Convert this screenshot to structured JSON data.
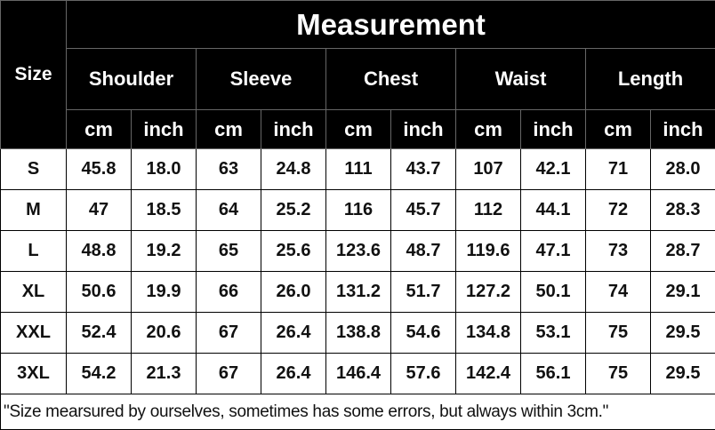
{
  "table": {
    "title": "Measurement",
    "size_header": "Size",
    "categories": [
      "Shoulder",
      "Sleeve",
      "Chest",
      "Waist",
      "Length"
    ],
    "units": [
      "cm",
      "inch"
    ],
    "rows": [
      {
        "size": "S",
        "values": [
          "45.8",
          "18.0",
          "63",
          "24.8",
          "111",
          "43.7",
          "107",
          "42.1",
          "71",
          "28.0"
        ]
      },
      {
        "size": "M",
        "values": [
          "47",
          "18.5",
          "64",
          "25.2",
          "116",
          "45.7",
          "112",
          "44.1",
          "72",
          "28.3"
        ]
      },
      {
        "size": "L",
        "values": [
          "48.8",
          "19.2",
          "65",
          "25.6",
          "123.6",
          "48.7",
          "119.6",
          "47.1",
          "73",
          "28.7"
        ]
      },
      {
        "size": "XL",
        "values": [
          "50.6",
          "19.9",
          "66",
          "26.0",
          "131.2",
          "51.7",
          "127.2",
          "50.1",
          "74",
          "29.1"
        ]
      },
      {
        "size": "XXL",
        "values": [
          "52.4",
          "20.6",
          "67",
          "26.4",
          "138.8",
          "54.6",
          "134.8",
          "53.1",
          "75",
          "29.5"
        ]
      },
      {
        "size": "3XL",
        "values": [
          "54.2",
          "21.3",
          "67",
          "26.4",
          "146.4",
          "57.6",
          "142.4",
          "56.1",
          "75",
          "29.5"
        ]
      }
    ],
    "note": "\"Size mearsured by ourselves, sometimes has some errors, but always within 3cm.\""
  },
  "colors": {
    "header_bg": "#000000",
    "header_text": "#ffffff",
    "body_bg": "#ffffff"
  }
}
